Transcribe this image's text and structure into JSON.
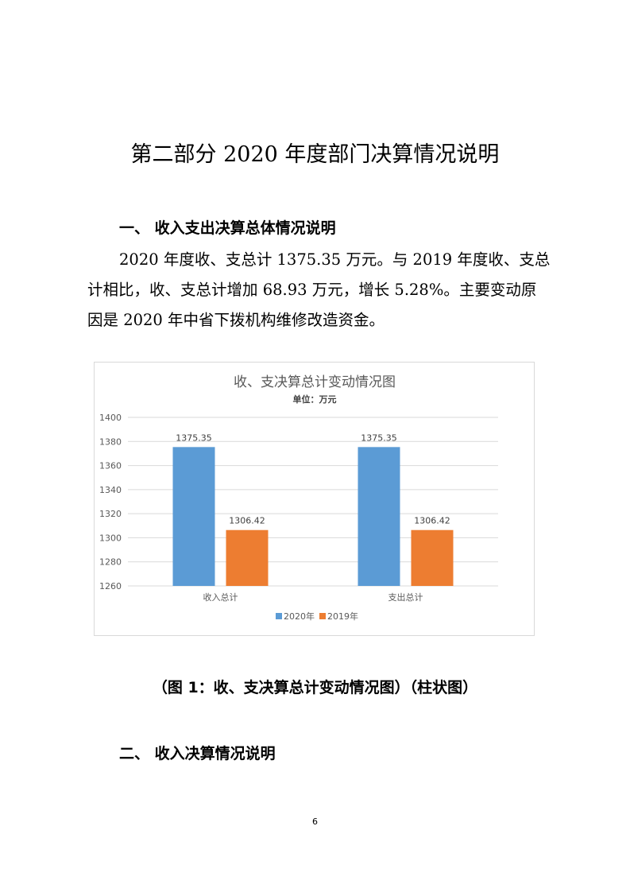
{
  "title": "第二部分 2020 年度部门决算情况说明",
  "section1": {
    "heading": "一、 收入支出决算总体情况说明",
    "lines": [
      "2020 年度收、支总计 1375.35 万元。与 2019 年度收、支总",
      "计相比，收、支总计增加 68.93 万元，增长 5.28%。主要变动原",
      "因是 2020 年中省下拨机构维修改造资金。"
    ]
  },
  "chart_data": {
    "type": "bar",
    "title": "收、支决算总计变动情况图",
    "subtitle": "单位：万元",
    "categories": [
      "收入总计",
      "支出总计"
    ],
    "series": [
      {
        "name": "2020年",
        "values": [
          1375.35,
          1375.35
        ],
        "color": "#5b9bd5"
      },
      {
        "name": "2019年",
        "values": [
          1306.42,
          1306.42
        ],
        "color": "#ed7d31"
      }
    ],
    "ylim": [
      1260,
      1400
    ],
    "yticks": [
      1260,
      1280,
      1300,
      1320,
      1340,
      1360,
      1380,
      1400
    ],
    "grid": true,
    "legend": "bottom"
  },
  "caption": "（图 1：收、支决算总计变动情况图）（柱状图）",
  "section2": {
    "heading": "二、 收入决算情况说明"
  },
  "page_number": "6"
}
